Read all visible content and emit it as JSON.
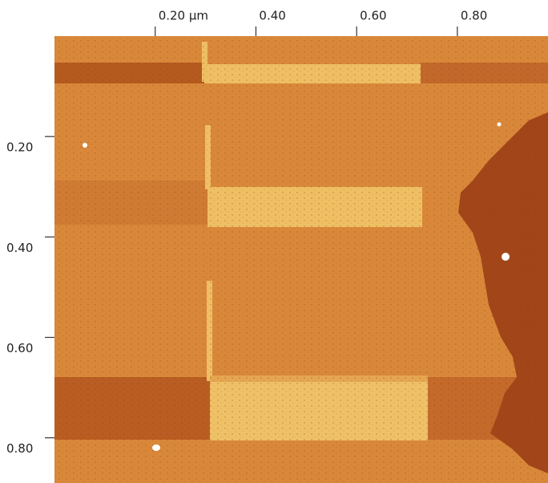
{
  "chart_data": {
    "type": "image",
    "xlim": [
      0,
      0.98
    ],
    "ylim": [
      0,
      0.89
    ],
    "xticks": [
      {
        "value": 0.2,
        "label": "0.20 µm"
      },
      {
        "value": 0.4,
        "label": "0.40"
      },
      {
        "value": 0.6,
        "label": "0.60"
      },
      {
        "value": 0.8,
        "label": "0.80"
      }
    ],
    "yticks": [
      {
        "value": 0.2,
        "label": "0.20"
      },
      {
        "value": 0.4,
        "label": "0.40"
      },
      {
        "value": 0.6,
        "label": "0.60"
      },
      {
        "value": 0.8,
        "label": "0.80"
      }
    ]
  }
}
